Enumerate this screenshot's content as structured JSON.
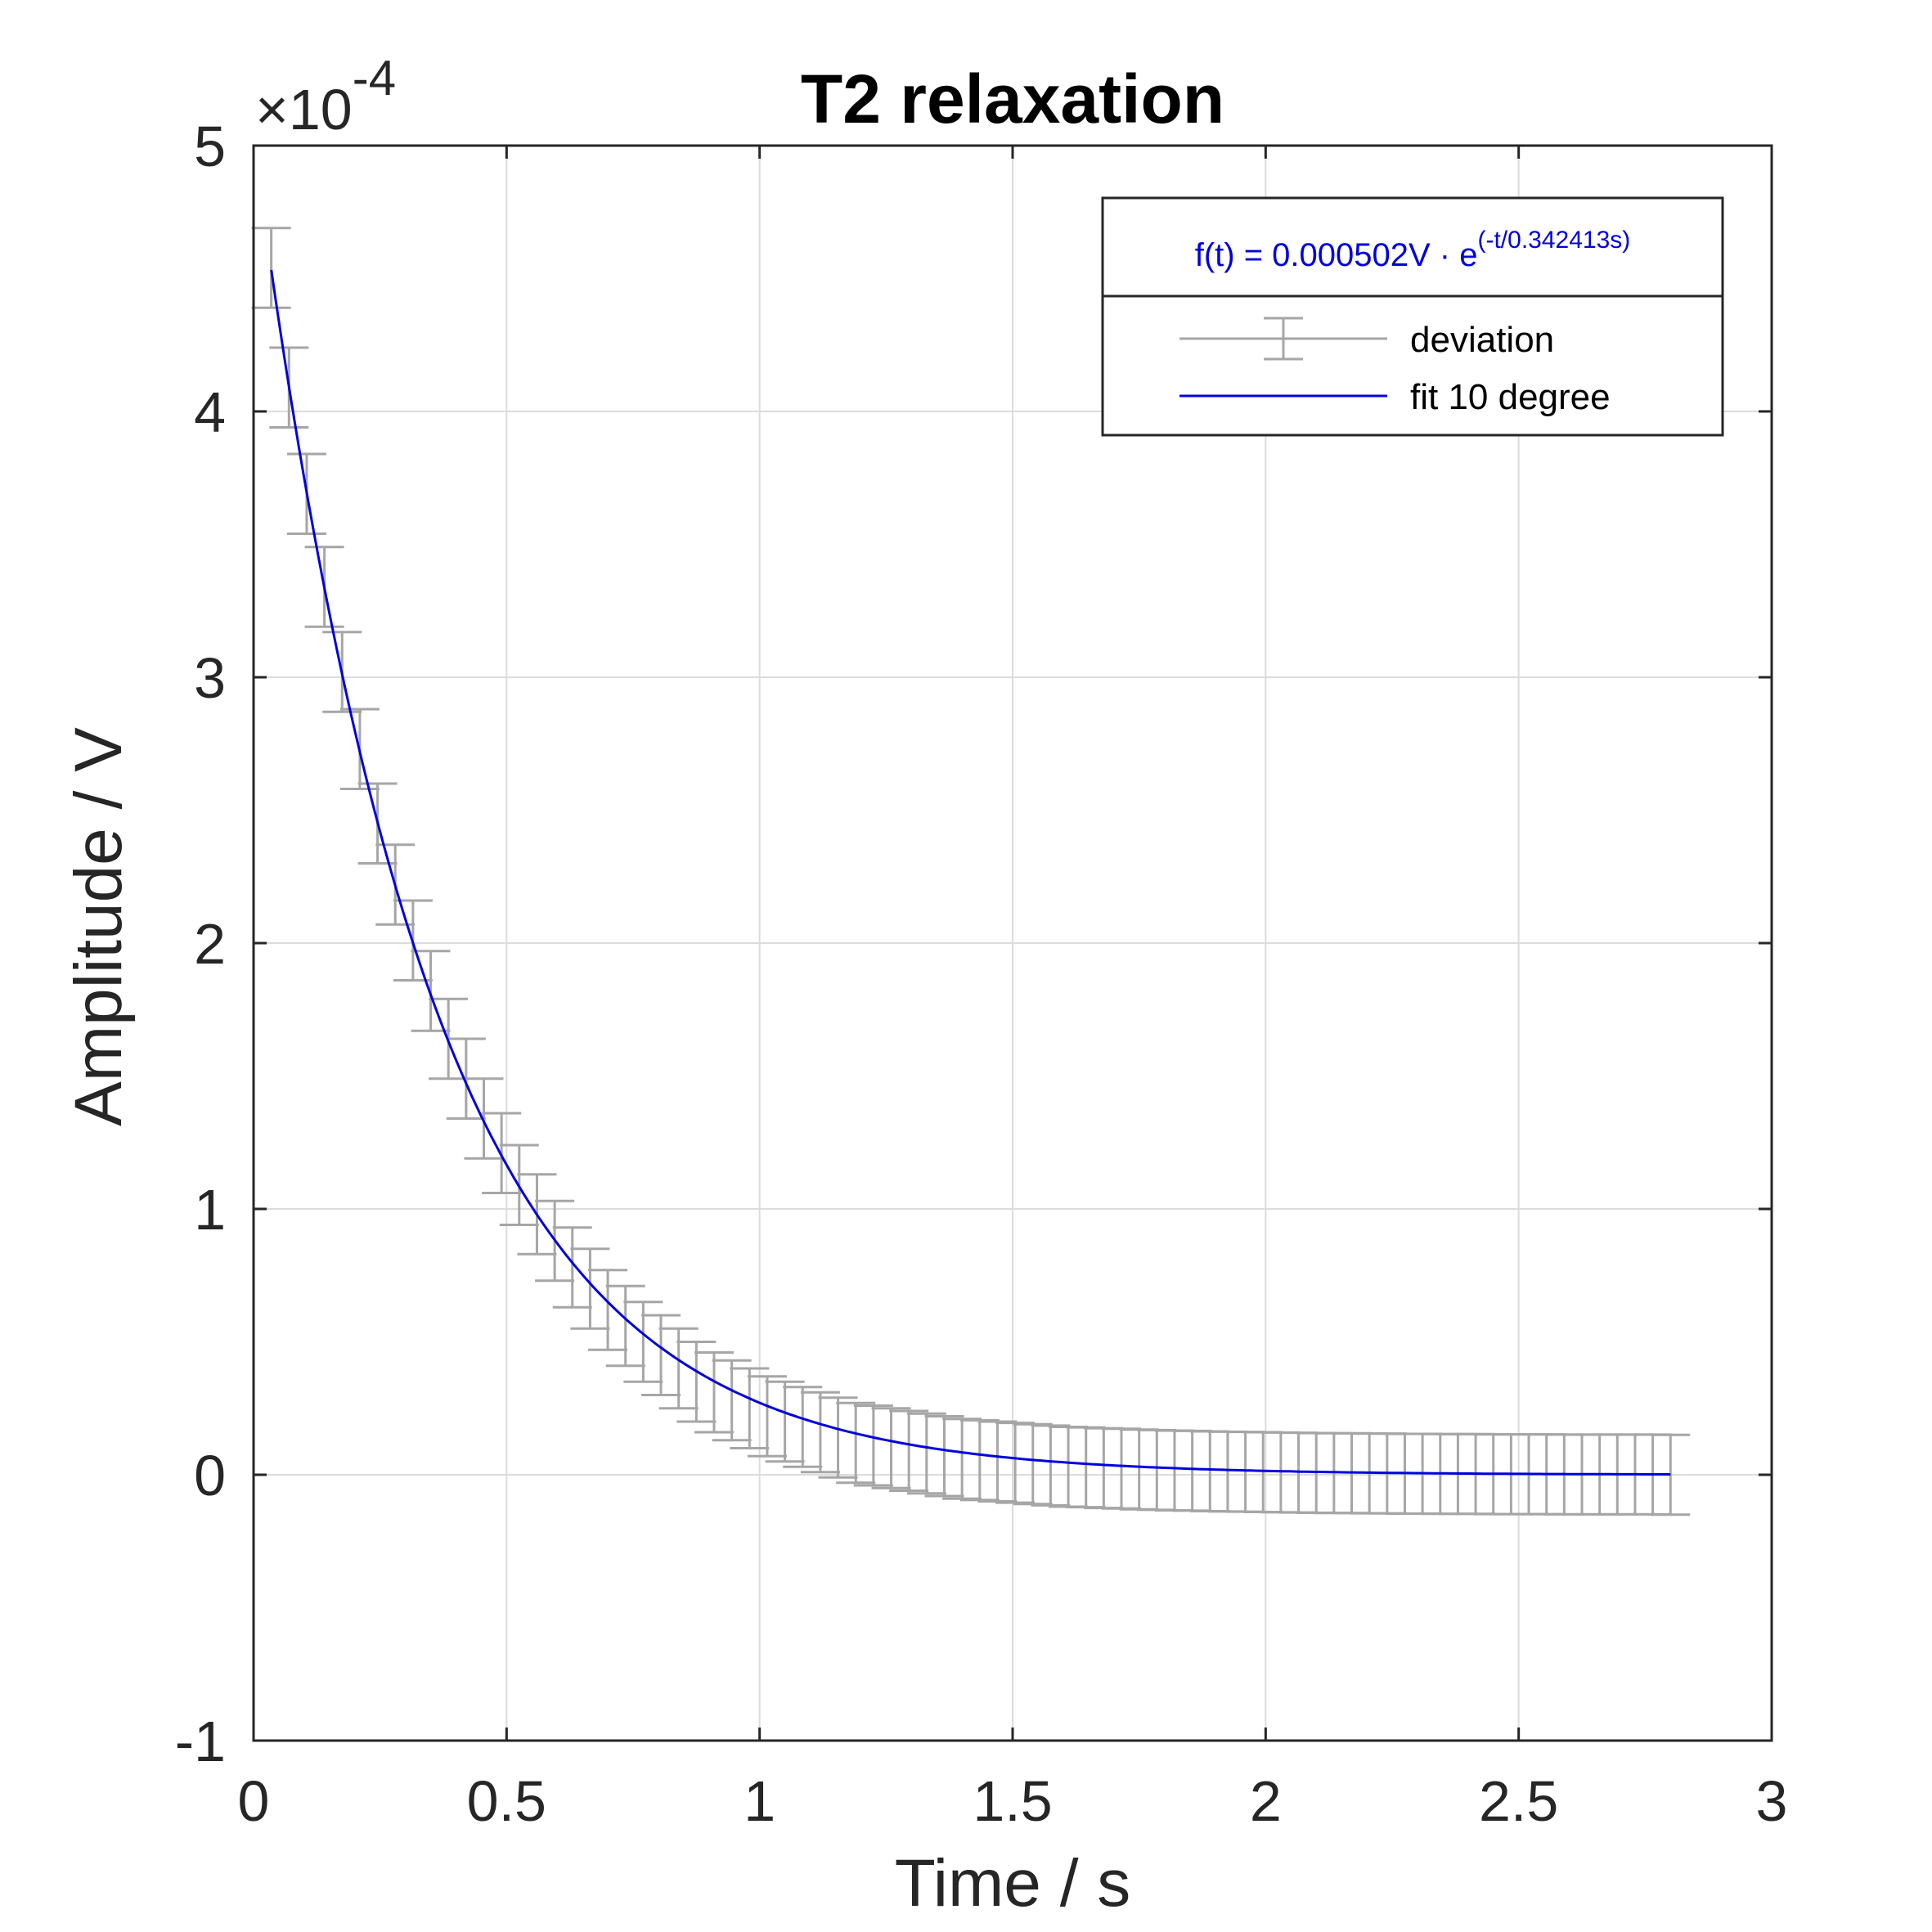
{
  "colors": {
    "errorbar": "#a6a6a6",
    "fit": "#0000dd",
    "grid": "#dcdcdc",
    "axis": "#262626",
    "formula": "#0000dd"
  },
  "chart_data": {
    "type": "line",
    "title": "T2 relaxation",
    "xlabel": "Time / s",
    "ylabel": "Amplitude / V",
    "xlim": [
      0,
      3
    ],
    "ylim": [
      -1,
      5
    ],
    "y_scale_factor_label": "×10",
    "y_scale_exponent": "-4",
    "xticks": [
      0,
      0.5,
      1,
      1.5,
      2,
      2.5,
      3
    ],
    "xtick_labels": [
      "0",
      "0.5",
      "1",
      "1.5",
      "2",
      "2.5",
      "3"
    ],
    "yticks": [
      -1,
      0,
      1,
      2,
      3,
      4,
      5
    ],
    "ytick_labels": [
      "-1",
      "0",
      "1",
      "2",
      "3",
      "4",
      "5"
    ],
    "grid": true,
    "legend": {
      "location": "top-right",
      "title_base": "f(t) = 0.000502V · e",
      "title_exponent": "(-t/0.342413s)",
      "entries": [
        "deviation",
        "fit 10 degree"
      ]
    },
    "fit": {
      "name": "fit 10 degree",
      "amplitude": 5.02,
      "tau": 0.342413,
      "x_start": 0.035,
      "x_end": 2.8
    },
    "series": [
      {
        "name": "deviation",
        "x": [
          0.035,
          0.07,
          0.105,
          0.14,
          0.175,
          0.21,
          0.245,
          0.28,
          0.315,
          0.35,
          0.385,
          0.42,
          0.455,
          0.49,
          0.525,
          0.56,
          0.595,
          0.63,
          0.665,
          0.7,
          0.735,
          0.77,
          0.805,
          0.84,
          0.875,
          0.91,
          0.945,
          0.98,
          1.015,
          1.05,
          1.085,
          1.12,
          1.155,
          1.19,
          1.225,
          1.26,
          1.295,
          1.33,
          1.365,
          1.4,
          1.435,
          1.47,
          1.505,
          1.54,
          1.575,
          1.61,
          1.645,
          1.68,
          1.715,
          1.75,
          1.785,
          1.82,
          1.855,
          1.89,
          1.925,
          1.96,
          1.995,
          2.03,
          2.065,
          2.1,
          2.135,
          2.17,
          2.205,
          2.24,
          2.275,
          2.31,
          2.345,
          2.38,
          2.415,
          2.45,
          2.485,
          2.52,
          2.555,
          2.59,
          2.625,
          2.66,
          2.695,
          2.73,
          2.765,
          2.8
        ],
        "y": [
          4.54,
          4.09,
          3.69,
          3.34,
          3.02,
          2.73,
          2.45,
          2.22,
          2.01,
          1.82,
          1.64,
          1.49,
          1.34,
          1.21,
          1.09,
          0.98,
          0.88,
          0.78,
          0.7,
          0.62,
          0.56,
          0.5,
          0.45,
          0.4,
          0.35,
          0.31,
          0.28,
          0.25,
          0.22,
          0.2,
          0.18,
          0.16,
          0.14,
          0.12,
          0.11,
          0.1,
          0.09,
          0.08,
          0.07,
          0.06,
          0.055,
          0.05,
          0.045,
          0.04,
          0.035,
          0.03,
          0.028,
          0.025,
          0.023,
          0.02,
          0.018,
          0.016,
          0.015,
          0.013,
          0.012,
          0.011,
          0.01,
          0.009,
          0.008,
          0.007,
          0.006,
          0.006,
          0.005,
          0.005,
          0.004,
          0.004,
          0.003,
          0.003,
          0.003,
          0.002,
          0.002,
          0.002,
          0.002,
          0.001,
          0.001,
          0.001,
          0.001,
          0.001,
          0.001,
          0.0
        ],
        "error": [
          0.15,
          0.15,
          0.15,
          0.15,
          0.15,
          0.15,
          0.15,
          0.15,
          0.15,
          0.15,
          0.15,
          0.15,
          0.15,
          0.15,
          0.15,
          0.15,
          0.15,
          0.15,
          0.15,
          0.15,
          0.15,
          0.15,
          0.15,
          0.15,
          0.15,
          0.15,
          0.15,
          0.15,
          0.15,
          0.15,
          0.15,
          0.15,
          0.15,
          0.15,
          0.15,
          0.15,
          0.15,
          0.15,
          0.15,
          0.15,
          0.15,
          0.15,
          0.15,
          0.15,
          0.15,
          0.15,
          0.15,
          0.15,
          0.15,
          0.15,
          0.15,
          0.15,
          0.15,
          0.15,
          0.15,
          0.15,
          0.15,
          0.15,
          0.15,
          0.15,
          0.15,
          0.15,
          0.15,
          0.15,
          0.15,
          0.15,
          0.15,
          0.15,
          0.15,
          0.15,
          0.15,
          0.15,
          0.15,
          0.15,
          0.15,
          0.15,
          0.15,
          0.15,
          0.15,
          0.15
        ]
      }
    ]
  }
}
